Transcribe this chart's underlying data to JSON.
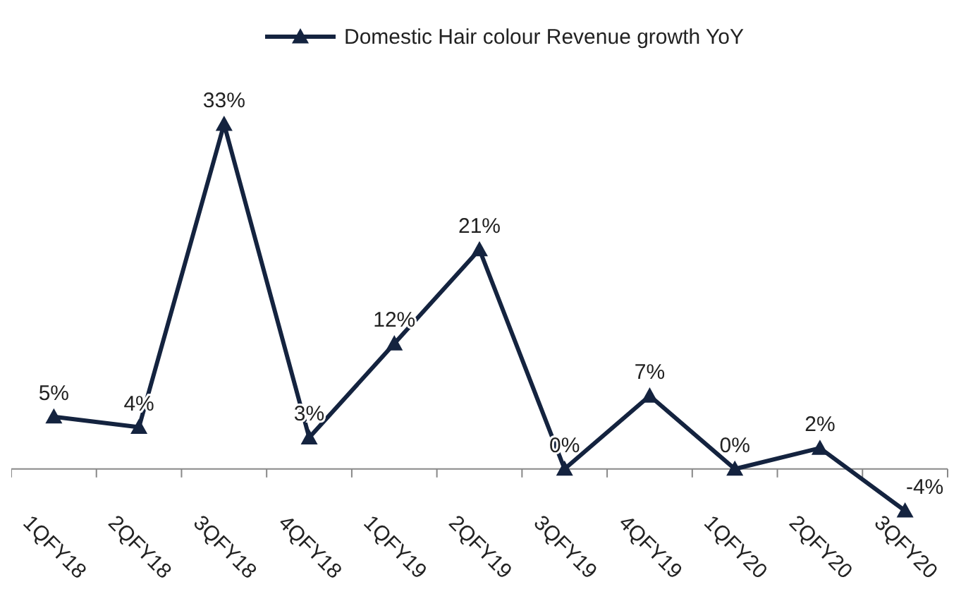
{
  "chart_data": {
    "type": "line",
    "categories": [
      "1QFY18",
      "2QFY18",
      "3QFY18",
      "4QFY18",
      "1QFY19",
      "2QFY19",
      "3QFY19",
      "4QFY19",
      "1QFY20",
      "2QFY20",
      "3QFY20"
    ],
    "series": [
      {
        "name": "Domestic Hair colour Revenue growth YoY",
        "color": "#14233f",
        "values": [
          5,
          4,
          33,
          3,
          12,
          21,
          0,
          7,
          0,
          2,
          -4
        ],
        "value_labels": [
          "5%",
          "4%",
          "33%",
          "3%",
          "12%",
          "21%",
          "0%",
          "7%",
          "0%",
          "2%",
          "-4%"
        ]
      }
    ],
    "tick_labels": "x",
    "legend": "top",
    "marker": "triangle",
    "line_style": "solid"
  }
}
